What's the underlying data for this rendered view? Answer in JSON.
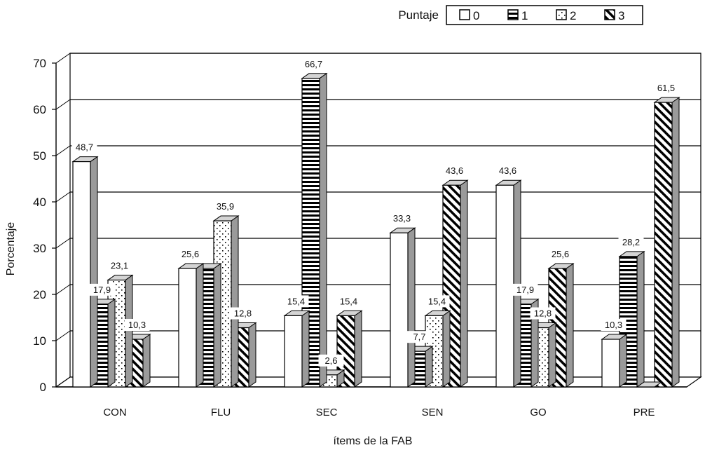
{
  "chart_data": {
    "type": "bar",
    "ylabel": "Porcentaje",
    "xlabel": "ítems de la FAB",
    "ylim": [
      0,
      70
    ],
    "yticks": [
      0,
      10,
      20,
      30,
      40,
      50,
      60,
      70
    ],
    "categories": [
      "CON",
      "FLU",
      "SEC",
      "SEN",
      "GO",
      "PRE"
    ],
    "legend": {
      "title": "Puntaje",
      "placement": "top-right"
    },
    "series": [
      {
        "name": "0",
        "pattern": "white",
        "values": [
          48.7,
          25.6,
          15.4,
          33.3,
          43.6,
          10.3
        ],
        "labels": [
          "48,7",
          "25,6",
          "15,4",
          "33,3",
          "43,6",
          "10,3"
        ]
      },
      {
        "name": "1",
        "pattern": "horizontal-stripes",
        "values": [
          17.9,
          25.6,
          66.7,
          7.7,
          17.9,
          28.2
        ],
        "labels": [
          "17,9",
          "",
          "66,7",
          "7,7",
          "17,9",
          "28,2"
        ]
      },
      {
        "name": "2",
        "pattern": "dots",
        "values": [
          23.1,
          35.9,
          2.6,
          15.4,
          12.8,
          0
        ],
        "labels": [
          "23,1",
          "35,9",
          "2,6",
          "15,4",
          "12,8",
          ""
        ]
      },
      {
        "name": "3",
        "pattern": "diagonal-stripes",
        "values": [
          10.3,
          12.8,
          15.4,
          43.6,
          25.6,
          61.5
        ],
        "labels": [
          "10,3",
          "12,8",
          "15,4",
          "43,6",
          "25,6",
          "61,5"
        ]
      }
    ],
    "grid": true,
    "style": "3d-clustered-bar"
  },
  "colors": {
    "bar_face": "#ffffff",
    "bar_side": "#9a9a9a",
    "bar_top": "#d4d4d4",
    "ink": "#000000"
  }
}
